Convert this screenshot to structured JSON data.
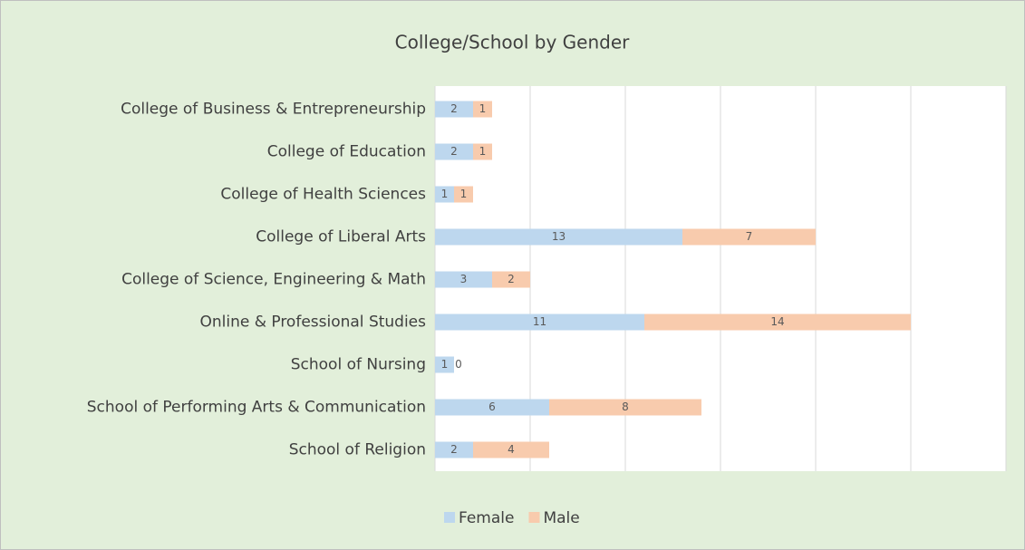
{
  "chart_data": {
    "type": "stacked_barh",
    "title": "College/School by Gender",
    "categories": [
      "College of Business & Entrepreneurship",
      "College of Education",
      "College of Health Sciences",
      "College of Liberal Arts",
      "College of Science, Engineering & Math",
      "Online & Professional Studies",
      "School of Nursing",
      "School of Performing Arts & Communication",
      "School of Religion"
    ],
    "series": [
      {
        "name": "Female",
        "color": "#bdd7ee",
        "values": [
          2,
          2,
          1,
          13,
          3,
          11,
          1,
          6,
          2
        ]
      },
      {
        "name": "Male",
        "color": "#f8cbad",
        "values": [
          1,
          1,
          1,
          7,
          2,
          14,
          0,
          8,
          4
        ]
      }
    ],
    "xlim": [
      0,
      30
    ],
    "xticks": [
      0,
      5,
      10,
      15,
      20,
      25,
      30
    ],
    "grid": true,
    "legend": "bottom"
  }
}
